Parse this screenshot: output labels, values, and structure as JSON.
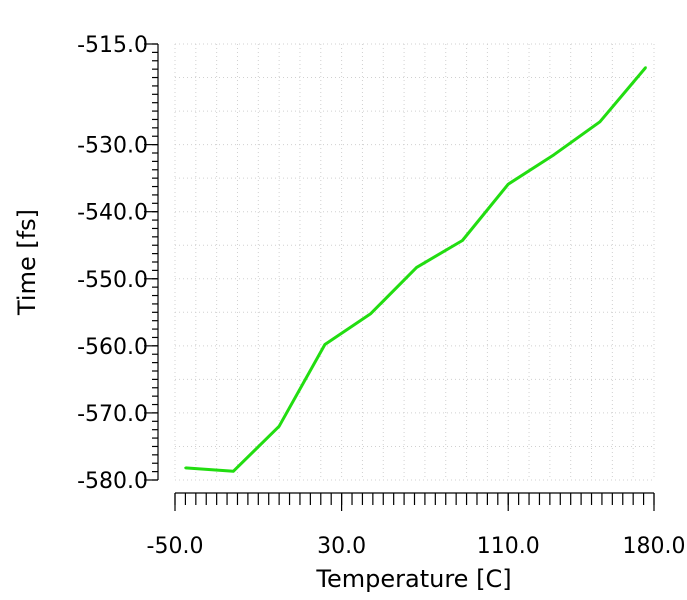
{
  "chart_data": {
    "type": "line",
    "title": "",
    "xlabel": "Temperature [C]",
    "ylabel": "Time [fs]",
    "xlim": [
      -50,
      180
    ],
    "ylim": [
      -580,
      -515
    ],
    "x_ticks": [
      -50,
      30,
      110,
      180
    ],
    "x_tick_labels": [
      "-50.0",
      "30.0",
      "110.0",
      "180.0"
    ],
    "y_ticks": [
      -515,
      -530,
      -540,
      -550,
      -560,
      -570,
      -580
    ],
    "y_tick_labels": [
      "-515.0",
      "-530.0",
      "-540.0",
      "-550.0",
      "-560.0",
      "-570.0",
      "-580.0"
    ],
    "grid": true,
    "series": [
      {
        "color": "#22dd11",
        "x": [
          -45,
          -22,
          0,
          22,
          44,
          66,
          88,
          110,
          132,
          154,
          176
        ],
        "y": [
          -578.2,
          -578.7,
          -572.0,
          -559.8,
          -555.2,
          -548.3,
          -544.3,
          -535.9,
          -531.5,
          -526.6,
          -518.5
        ]
      }
    ]
  }
}
